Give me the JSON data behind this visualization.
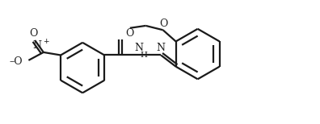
{
  "bg_color": "#ffffff",
  "line_color": "#1a1a1a",
  "line_width": 1.6,
  "fig_width": 3.96,
  "fig_height": 1.54,
  "dpi": 100,
  "xlim": [
    0,
    11
  ],
  "ylim": [
    0,
    4.3
  ]
}
